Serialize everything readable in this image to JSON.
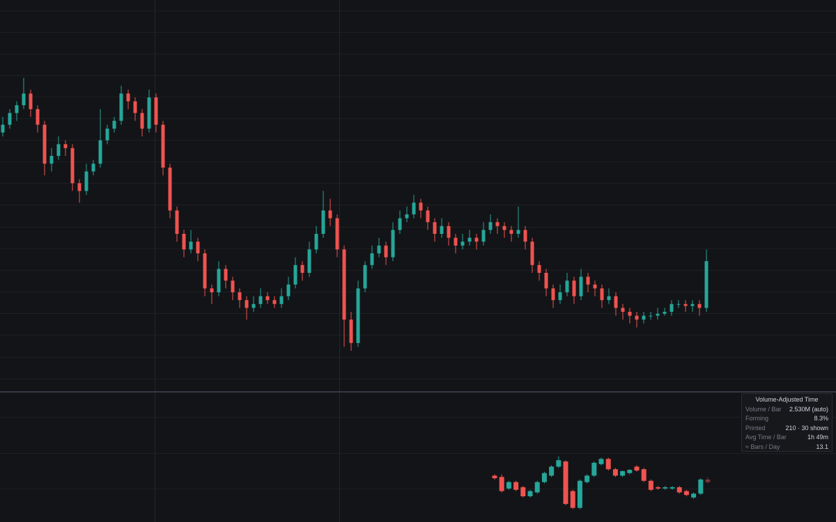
{
  "chart_data": [
    {
      "type": "candlestick",
      "up_color": "#26a69a",
      "down_color": "#ef5350",
      "ylim": [
        0,
        100
      ],
      "candles": [
        [
          66,
          70,
          65,
          68
        ],
        [
          68,
          72,
          67,
          71
        ],
        [
          71,
          74,
          69,
          73
        ],
        [
          73,
          80,
          72,
          76
        ],
        [
          76,
          77,
          70,
          72
        ],
        [
          72,
          73,
          66,
          68
        ],
        [
          68,
          69,
          55,
          58
        ],
        [
          58,
          62,
          56,
          60
        ],
        [
          60,
          65,
          59,
          63
        ],
        [
          63,
          64,
          60,
          62
        ],
        [
          62,
          63,
          51,
          53
        ],
        [
          53,
          54,
          48,
          51
        ],
        [
          51,
          58,
          50,
          56
        ],
        [
          56,
          59,
          55,
          58
        ],
        [
          58,
          72,
          57,
          64
        ],
        [
          64,
          68,
          63,
          67
        ],
        [
          67,
          70,
          66,
          69
        ],
        [
          69,
          78,
          68,
          76
        ],
        [
          76,
          77,
          72,
          74
        ],
        [
          74,
          75,
          69,
          71
        ],
        [
          71,
          72,
          65,
          67
        ],
        [
          67,
          77,
          66,
          75
        ],
        [
          75,
          76,
          66,
          68
        ],
        [
          68,
          69,
          55,
          57
        ],
        [
          57,
          58,
          44,
          46
        ],
        [
          46,
          47,
          38,
          40
        ],
        [
          40,
          41,
          34,
          36
        ],
        [
          36,
          41,
          35,
          38
        ],
        [
          38,
          39,
          33,
          35
        ],
        [
          35,
          36,
          24,
          26
        ],
        [
          26,
          27,
          22,
          25
        ],
        [
          25,
          33,
          24,
          31
        ],
        [
          31,
          32,
          26,
          28
        ],
        [
          28,
          29,
          23,
          25
        ],
        [
          25,
          26,
          21,
          23
        ],
        [
          23,
          24,
          18,
          21
        ],
        [
          21,
          24,
          20,
          22
        ],
        [
          22,
          26,
          21,
          24
        ],
        [
          24,
          25,
          22,
          23
        ],
        [
          23,
          24,
          21,
          22
        ],
        [
          22,
          26,
          21,
          24
        ],
        [
          24,
          29,
          23,
          27
        ],
        [
          27,
          34,
          26,
          32
        ],
        [
          32,
          33,
          28,
          30
        ],
        [
          30,
          38,
          29,
          36
        ],
        [
          36,
          42,
          35,
          40
        ],
        [
          40,
          51,
          39,
          46
        ],
        [
          46,
          49,
          42,
          44
        ],
        [
          44,
          45,
          34,
          36
        ],
        [
          36,
          37,
          11,
          18
        ],
        [
          18,
          20,
          10,
          12
        ],
        [
          12,
          28,
          11,
          26
        ],
        [
          26,
          33,
          25,
          32
        ],
        [
          32,
          37,
          31,
          35
        ],
        [
          35,
          39,
          34,
          37
        ],
        [
          37,
          38,
          32,
          34
        ],
        [
          34,
          43,
          33,
          41
        ],
        [
          41,
          46,
          40,
          44
        ],
        [
          44,
          47,
          43,
          45
        ],
        [
          45,
          50,
          44,
          48
        ],
        [
          48,
          49,
          44,
          46
        ],
        [
          46,
          47,
          41,
          43
        ],
        [
          43,
          44,
          38,
          40
        ],
        [
          40,
          44,
          39,
          42
        ],
        [
          42,
          43,
          37,
          39
        ],
        [
          39,
          40,
          35,
          37
        ],
        [
          37,
          40,
          36,
          38
        ],
        [
          38,
          41,
          37,
          39
        ],
        [
          39,
          40,
          36,
          38
        ],
        [
          38,
          43,
          37,
          41
        ],
        [
          41,
          45,
          40,
          43
        ],
        [
          43,
          44,
          40,
          42
        ],
        [
          42,
          43,
          39,
          41
        ],
        [
          41,
          42,
          38,
          40
        ],
        [
          40,
          47,
          39,
          41
        ],
        [
          41,
          42,
          36,
          38
        ],
        [
          38,
          39,
          30,
          32
        ],
        [
          32,
          33,
          28,
          30
        ],
        [
          30,
          31,
          24,
          26
        ],
        [
          26,
          27,
          21,
          23
        ],
        [
          23,
          27,
          22,
          25
        ],
        [
          25,
          30,
          24,
          28
        ],
        [
          28,
          29,
          22,
          24
        ],
        [
          24,
          31,
          23,
          29
        ],
        [
          29,
          30,
          25,
          27
        ],
        [
          27,
          28,
          24,
          26
        ],
        [
          26,
          27,
          21,
          23
        ],
        [
          23,
          26,
          22,
          24
        ],
        [
          24,
          25,
          19,
          21
        ],
        [
          21,
          22,
          18,
          20
        ],
        [
          20,
          21,
          17,
          19
        ],
        [
          19,
          20,
          16,
          18
        ],
        [
          18,
          20,
          17,
          19
        ],
        [
          19,
          20,
          18,
          19
        ],
        [
          19,
          21,
          18,
          19.5
        ],
        [
          19.5,
          21,
          19,
          20
        ],
        [
          20,
          23,
          19,
          22
        ],
        [
          22,
          23,
          21,
          22
        ],
        [
          22,
          23,
          20,
          21.5
        ],
        [
          21.5,
          23,
          20,
          22
        ],
        [
          22,
          23,
          19,
          21
        ],
        [
          21,
          36,
          20,
          33
        ]
      ]
    },
    {
      "type": "candlestick",
      "up_color": "#26a69a",
      "down_color": "#ef5350",
      "ylim": [
        0,
        100
      ],
      "forming_last": true,
      "candles": [
        [
          36,
          37,
          33,
          34
        ],
        [
          35,
          37,
          23,
          24
        ],
        [
          26,
          32,
          25,
          31
        ],
        [
          31,
          32,
          24,
          25
        ],
        [
          27,
          28,
          19,
          20
        ],
        [
          20,
          25,
          19,
          24
        ],
        [
          23,
          32,
          22,
          31
        ],
        [
          31,
          39,
          30,
          38
        ],
        [
          36,
          44,
          35,
          43
        ],
        [
          43,
          51,
          42,
          48
        ],
        [
          47,
          48,
          13,
          14
        ],
        [
          24,
          25,
          10,
          11
        ],
        [
          11,
          33,
          10,
          32
        ],
        [
          31,
          37,
          30,
          36
        ],
        [
          36,
          47,
          35,
          46
        ],
        [
          45,
          50,
          44,
          49
        ],
        [
          49,
          50,
          40,
          41
        ],
        [
          41,
          42,
          35,
          36
        ],
        [
          36,
          40,
          35,
          39.5
        ],
        [
          38,
          41,
          37,
          40.5
        ],
        [
          43,
          44,
          39,
          40
        ],
        [
          41,
          42,
          31,
          32
        ],
        [
          32,
          33,
          24,
          25
        ],
        [
          27,
          28,
          25,
          26
        ],
        [
          26,
          28,
          25,
          27
        ],
        [
          26,
          28,
          25,
          27
        ],
        [
          27,
          28,
          22,
          23
        ],
        [
          24,
          25,
          20,
          21
        ],
        [
          19,
          23,
          18,
          22
        ],
        [
          22,
          34,
          21,
          33
        ],
        [
          33,
          35,
          30,
          31
        ]
      ]
    }
  ],
  "info": {
    "title": "Volume-Adjusted Time",
    "rows": [
      [
        "Volume / Bar",
        "2.530M (auto)"
      ],
      [
        "Forming",
        "8.3%"
      ],
      [
        "Printed",
        "210 · 30 shown"
      ],
      [
        "Avg Time / Bar",
        "1h 49m"
      ],
      [
        "≈ Bars / Day",
        "13.1"
      ]
    ]
  }
}
